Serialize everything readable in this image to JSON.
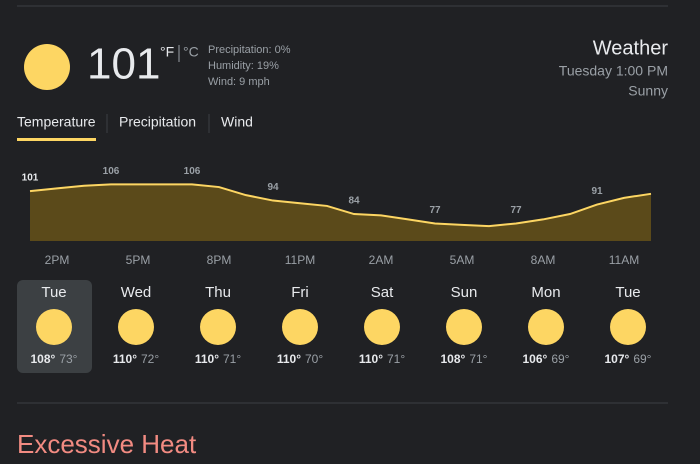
{
  "current": {
    "temperature": "101",
    "unit_f": "°F",
    "unit_c": "°C",
    "precipitation": "Precipitation: 0%",
    "humidity": "Humidity: 19%",
    "wind": "Wind: 9 mph"
  },
  "header": {
    "title": "Weather",
    "time": "Tuesday 1:00 PM",
    "condition": "Sunny"
  },
  "tabs": [
    "Temperature",
    "Precipitation",
    "Wind"
  ],
  "chart_data": {
    "type": "area",
    "categories": [
      null,
      "2PM",
      null,
      null,
      "5PM",
      null,
      null,
      "8PM",
      null,
      null,
      "11PM",
      null,
      null,
      "2AM",
      null,
      null,
      "5AM",
      null,
      null,
      "8AM",
      null,
      null,
      "11AM",
      null
    ],
    "values": [
      101,
      103,
      105,
      106,
      106,
      106,
      106,
      104,
      98,
      94,
      92,
      90,
      84,
      83,
      80,
      77,
      76,
      75,
      77,
      80,
      84,
      91,
      96,
      99
    ],
    "color": "#fdd663",
    "ylim": [
      64,
      130
    ]
  },
  "days": [
    {
      "name": "Tue",
      "high": "108°",
      "low": "73°"
    },
    {
      "name": "Wed",
      "high": "110°",
      "low": "72°"
    },
    {
      "name": "Thu",
      "high": "110°",
      "low": "71°"
    },
    {
      "name": "Fri",
      "high": "110°",
      "low": "70°"
    },
    {
      "name": "Sat",
      "high": "110°",
      "low": "71°"
    },
    {
      "name": "Sun",
      "high": "108°",
      "low": "71°"
    },
    {
      "name": "Mon",
      "high": "106°",
      "low": "69°"
    },
    {
      "name": "Tue",
      "high": "107°",
      "low": "69°"
    }
  ],
  "alert": {
    "title": "Excessive Heat"
  }
}
